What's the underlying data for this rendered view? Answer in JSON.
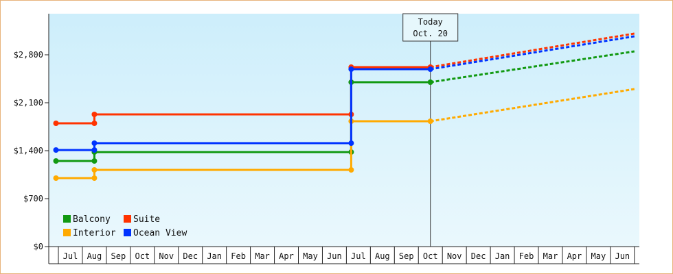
{
  "chart_data": {
    "type": "line",
    "ylim": [
      0,
      3400
    ],
    "y_ticks": [
      {
        "value": 0,
        "label": "$0"
      },
      {
        "value": 700,
        "label": "$700"
      },
      {
        "value": 1400,
        "label": "$1,400"
      },
      {
        "value": 2100,
        "label": "$2,100"
      },
      {
        "value": 2800,
        "label": "$2,800"
      }
    ],
    "x_months": [
      "Jul",
      "Aug",
      "Sep",
      "Oct",
      "Nov",
      "Dec",
      "Jan",
      "Feb",
      "Mar",
      "Apr",
      "May",
      "Jun",
      "Jul",
      "Aug",
      "Sep",
      "Oct",
      "Nov",
      "Dec",
      "Jan",
      "Feb",
      "Mar",
      "Apr",
      "May",
      "Jun"
    ],
    "today": {
      "line1": "Today",
      "line2": "Oct. 20",
      "month_index": 15.5
    },
    "legend": {
      "position": "bottom-left"
    },
    "series": [
      {
        "name": "Balcony",
        "color": "#119911",
        "points": [
          [
            -0.1,
            1250
          ],
          [
            1.5,
            1250
          ],
          [
            1.5,
            1380
          ],
          [
            12.2,
            1380
          ],
          [
            12.2,
            2400
          ],
          [
            15.5,
            2400
          ]
        ],
        "forecast": [
          [
            15.5,
            2400
          ],
          [
            24.0,
            2850
          ]
        ]
      },
      {
        "name": "Suite",
        "color": "#ff3300",
        "points": [
          [
            -0.1,
            1800
          ],
          [
            1.5,
            1800
          ],
          [
            1.5,
            1930
          ],
          [
            12.2,
            1930
          ],
          [
            12.2,
            2620
          ],
          [
            15.5,
            2620
          ]
        ],
        "forecast": [
          [
            15.5,
            2620
          ],
          [
            24.0,
            3110
          ]
        ]
      },
      {
        "name": "Interior",
        "color": "#ffaa00",
        "points": [
          [
            -0.1,
            1000
          ],
          [
            1.5,
            1000
          ],
          [
            1.5,
            1120
          ],
          [
            12.2,
            1120
          ],
          [
            12.2,
            1830
          ],
          [
            15.5,
            1830
          ]
        ],
        "forecast": [
          [
            15.5,
            1830
          ],
          [
            24.0,
            2300
          ]
        ]
      },
      {
        "name": "Ocean View",
        "color": "#0033ff",
        "points": [
          [
            -0.1,
            1410
          ],
          [
            1.5,
            1410
          ],
          [
            1.5,
            1510
          ],
          [
            12.2,
            1510
          ],
          [
            12.2,
            2590
          ],
          [
            15.5,
            2590
          ]
        ],
        "forecast": [
          [
            15.5,
            2590
          ],
          [
            24.0,
            3070
          ]
        ]
      }
    ]
  }
}
